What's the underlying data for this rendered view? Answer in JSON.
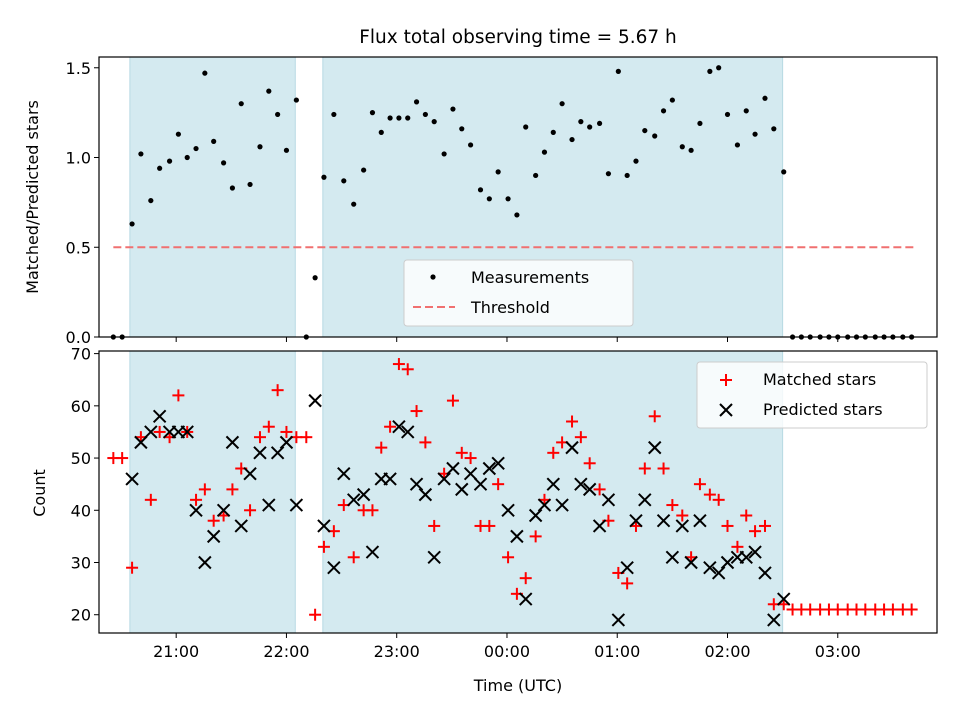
{
  "chart_data": {
    "title": "Flux total observing time = 5.67 h",
    "xlabel": "Time (UTC)",
    "xlim": [
      -0.7,
      6.9
    ],
    "x_ticks": [
      {
        "value": 0,
        "label": "21:00"
      },
      {
        "value": 1,
        "label": "22:00"
      },
      {
        "value": 2,
        "label": "23:00"
      },
      {
        "value": 3,
        "label": "00:00"
      },
      {
        "value": 4,
        "label": "01:00"
      },
      {
        "value": 5,
        "label": "02:00"
      },
      {
        "value": 6,
        "label": "03:00"
      }
    ],
    "shaded_intervals": [
      [
        -0.42,
        1.08
      ],
      [
        1.33,
        5.5
      ]
    ],
    "shade_color": "#d4eaf0",
    "top": {
      "type": "scatter",
      "ylabel": "Matched/Predicted stars",
      "ylim": [
        0,
        1.56
      ],
      "y_ticks": [
        {
          "value": 0,
          "label": "0.0"
        },
        {
          "value": 0.5,
          "label": "0.5"
        },
        {
          "value": 1.0,
          "label": "1.0"
        },
        {
          "value": 1.5,
          "label": "1.5"
        }
      ],
      "threshold": {
        "value": 0.5,
        "x_range": [
          -0.57,
          6.7
        ],
        "color": "#f07070"
      },
      "legend": [
        "Measurements",
        "Threshold"
      ],
      "measurements": [
        [
          -0.57,
          0.0
        ],
        [
          -0.49,
          0.0
        ],
        [
          -0.4,
          0.63
        ],
        [
          -0.32,
          1.02
        ],
        [
          -0.23,
          0.76
        ],
        [
          -0.15,
          0.94
        ],
        [
          -0.06,
          0.98
        ],
        [
          0.02,
          1.13
        ],
        [
          0.1,
          1.0
        ],
        [
          0.18,
          1.05
        ],
        [
          0.26,
          1.47
        ],
        [
          0.34,
          1.09
        ],
        [
          0.43,
          0.97
        ],
        [
          0.51,
          0.83
        ],
        [
          0.59,
          1.3
        ],
        [
          0.67,
          0.85
        ],
        [
          0.76,
          1.06
        ],
        [
          0.84,
          1.37
        ],
        [
          0.92,
          1.24
        ],
        [
          1.0,
          1.04
        ],
        [
          1.09,
          1.32
        ],
        [
          1.18,
          0.0
        ],
        [
          1.26,
          0.33
        ],
        [
          1.34,
          0.89
        ],
        [
          1.43,
          1.24
        ],
        [
          1.52,
          0.87
        ],
        [
          1.61,
          0.74
        ],
        [
          1.7,
          0.93
        ],
        [
          1.78,
          1.25
        ],
        [
          1.86,
          1.14
        ],
        [
          1.94,
          1.22
        ],
        [
          2.02,
          1.22
        ],
        [
          2.1,
          1.22
        ],
        [
          2.18,
          1.31
        ],
        [
          2.26,
          1.24
        ],
        [
          2.34,
          1.2
        ],
        [
          2.43,
          1.02
        ],
        [
          2.51,
          1.27
        ],
        [
          2.59,
          1.16
        ],
        [
          2.67,
          1.07
        ],
        [
          2.76,
          0.82
        ],
        [
          2.84,
          0.77
        ],
        [
          2.92,
          0.92
        ],
        [
          3.01,
          0.77
        ],
        [
          3.09,
          0.68
        ],
        [
          3.17,
          1.17
        ],
        [
          3.26,
          0.9
        ],
        [
          3.34,
          1.03
        ],
        [
          3.42,
          1.14
        ],
        [
          3.5,
          1.3
        ],
        [
          3.59,
          1.1
        ],
        [
          3.67,
          1.2
        ],
        [
          3.75,
          1.17
        ],
        [
          3.84,
          1.19
        ],
        [
          3.92,
          0.91
        ],
        [
          4.01,
          1.48
        ],
        [
          4.09,
          0.9
        ],
        [
          4.17,
          0.98
        ],
        [
          4.25,
          1.15
        ],
        [
          4.34,
          1.12
        ],
        [
          4.42,
          1.26
        ],
        [
          4.5,
          1.32
        ],
        [
          4.59,
          1.06
        ],
        [
          4.67,
          1.04
        ],
        [
          4.75,
          1.19
        ],
        [
          4.84,
          1.48
        ],
        [
          4.92,
          1.5
        ],
        [
          5.0,
          1.24
        ],
        [
          5.09,
          1.07
        ],
        [
          5.17,
          1.26
        ],
        [
          5.25,
          1.13
        ],
        [
          5.34,
          1.33
        ],
        [
          5.42,
          1.16
        ],
        [
          5.51,
          0.92
        ],
        [
          5.59,
          0.0
        ],
        [
          5.67,
          0.0
        ],
        [
          5.75,
          0.0
        ],
        [
          5.84,
          0.0
        ],
        [
          5.92,
          0.0
        ],
        [
          6.0,
          0.0
        ],
        [
          6.09,
          0.0
        ],
        [
          6.17,
          0.0
        ],
        [
          6.25,
          0.0
        ],
        [
          6.34,
          0.0
        ],
        [
          6.42,
          0.0
        ],
        [
          6.5,
          0.0
        ],
        [
          6.59,
          0.0
        ],
        [
          6.67,
          0.0
        ]
      ]
    },
    "bottom": {
      "type": "scatter",
      "ylabel": "Count",
      "ylim": [
        16.5,
        70.5
      ],
      "y_ticks": [
        {
          "value": 20,
          "label": "20"
        },
        {
          "value": 30,
          "label": "30"
        },
        {
          "value": 40,
          "label": "40"
        },
        {
          "value": 50,
          "label": "50"
        },
        {
          "value": 60,
          "label": "60"
        },
        {
          "value": 70,
          "label": "70"
        }
      ],
      "legend": [
        "Matched stars",
        "Predicted stars"
      ],
      "series": [
        {
          "name": "Matched stars",
          "color": "#ff0000",
          "points": [
            [
              -0.57,
              50
            ],
            [
              -0.49,
              50
            ],
            [
              -0.4,
              29
            ],
            [
              -0.32,
              54
            ],
            [
              -0.23,
              42
            ],
            [
              -0.15,
              55
            ],
            [
              -0.06,
              54
            ],
            [
              0.02,
              62
            ],
            [
              0.1,
              55
            ],
            [
              0.18,
              42
            ],
            [
              0.26,
              44
            ],
            [
              0.34,
              38
            ],
            [
              0.43,
              39
            ],
            [
              0.51,
              44
            ],
            [
              0.59,
              48
            ],
            [
              0.67,
              40
            ],
            [
              0.76,
              54
            ],
            [
              0.84,
              56
            ],
            [
              0.92,
              63
            ],
            [
              1.0,
              55
            ],
            [
              1.09,
              54
            ],
            [
              1.18,
              54
            ],
            [
              1.26,
              20
            ],
            [
              1.34,
              33
            ],
            [
              1.43,
              36
            ],
            [
              1.52,
              41
            ],
            [
              1.61,
              31
            ],
            [
              1.7,
              40
            ],
            [
              1.78,
              40
            ],
            [
              1.86,
              52
            ],
            [
              1.94,
              56
            ],
            [
              2.02,
              68
            ],
            [
              2.1,
              67
            ],
            [
              2.18,
              59
            ],
            [
              2.26,
              53
            ],
            [
              2.34,
              37
            ],
            [
              2.43,
              47
            ],
            [
              2.51,
              61
            ],
            [
              2.59,
              51
            ],
            [
              2.67,
              50
            ],
            [
              2.76,
              37
            ],
            [
              2.84,
              37
            ],
            [
              2.92,
              45
            ],
            [
              3.01,
              31
            ],
            [
              3.09,
              24
            ],
            [
              3.17,
              27
            ],
            [
              3.26,
              35
            ],
            [
              3.34,
              42
            ],
            [
              3.42,
              51
            ],
            [
              3.5,
              53
            ],
            [
              3.59,
              57
            ],
            [
              3.67,
              54
            ],
            [
              3.75,
              49
            ],
            [
              3.84,
              44
            ],
            [
              3.92,
              38
            ],
            [
              4.01,
              28
            ],
            [
              4.09,
              26
            ],
            [
              4.17,
              37
            ],
            [
              4.25,
              48
            ],
            [
              4.34,
              58
            ],
            [
              4.42,
              48
            ],
            [
              4.5,
              41
            ],
            [
              4.59,
              39
            ],
            [
              4.67,
              31
            ],
            [
              4.75,
              45
            ],
            [
              4.84,
              43
            ],
            [
              4.92,
              42
            ],
            [
              5.0,
              37
            ],
            [
              5.09,
              33
            ],
            [
              5.17,
              39
            ],
            [
              5.25,
              36
            ],
            [
              5.34,
              37
            ],
            [
              5.42,
              22
            ],
            [
              5.51,
              22
            ],
            [
              5.59,
              21
            ],
            [
              5.67,
              21
            ],
            [
              5.75,
              21
            ],
            [
              5.84,
              21
            ],
            [
              5.92,
              21
            ],
            [
              6.0,
              21
            ],
            [
              6.09,
              21
            ],
            [
              6.17,
              21
            ],
            [
              6.25,
              21
            ],
            [
              6.34,
              21
            ],
            [
              6.42,
              21
            ],
            [
              6.5,
              21
            ],
            [
              6.59,
              21
            ],
            [
              6.67,
              21
            ]
          ]
        },
        {
          "name": "Predicted stars",
          "color": "#000000",
          "points": [
            [
              -0.4,
              46
            ],
            [
              -0.32,
              53
            ],
            [
              -0.23,
              55
            ],
            [
              -0.15,
              58
            ],
            [
              -0.06,
              55
            ],
            [
              0.02,
              55
            ],
            [
              0.1,
              55
            ],
            [
              0.18,
              40
            ],
            [
              0.26,
              30
            ],
            [
              0.34,
              35
            ],
            [
              0.43,
              40
            ],
            [
              0.51,
              53
            ],
            [
              0.59,
              37
            ],
            [
              0.67,
              47
            ],
            [
              0.76,
              51
            ],
            [
              0.84,
              41
            ],
            [
              0.92,
              51
            ],
            [
              1.0,
              53
            ],
            [
              1.09,
              41
            ],
            [
              1.26,
              61
            ],
            [
              1.34,
              37
            ],
            [
              1.43,
              29
            ],
            [
              1.52,
              47
            ],
            [
              1.61,
              42
            ],
            [
              1.7,
              43
            ],
            [
              1.78,
              32
            ],
            [
              1.86,
              46
            ],
            [
              1.94,
              46
            ],
            [
              2.02,
              56
            ],
            [
              2.1,
              55
            ],
            [
              2.18,
              45
            ],
            [
              2.26,
              43
            ],
            [
              2.34,
              31
            ],
            [
              2.43,
              46
            ],
            [
              2.51,
              48
            ],
            [
              2.59,
              44
            ],
            [
              2.67,
              47
            ],
            [
              2.76,
              45
            ],
            [
              2.84,
              48
            ],
            [
              2.92,
              49
            ],
            [
              3.01,
              40
            ],
            [
              3.09,
              35
            ],
            [
              3.17,
              23
            ],
            [
              3.26,
              39
            ],
            [
              3.34,
              41
            ],
            [
              3.42,
              45
            ],
            [
              3.5,
              41
            ],
            [
              3.59,
              52
            ],
            [
              3.67,
              45
            ],
            [
              3.75,
              44
            ],
            [
              3.84,
              37
            ],
            [
              3.92,
              42
            ],
            [
              4.01,
              19
            ],
            [
              4.09,
              29
            ],
            [
              4.17,
              38
            ],
            [
              4.25,
              42
            ],
            [
              4.34,
              52
            ],
            [
              4.42,
              38
            ],
            [
              4.5,
              31
            ],
            [
              4.59,
              37
            ],
            [
              4.67,
              30
            ],
            [
              4.75,
              38
            ],
            [
              4.84,
              29
            ],
            [
              4.92,
              28
            ],
            [
              5.0,
              30
            ],
            [
              5.09,
              31
            ],
            [
              5.17,
              31
            ],
            [
              5.25,
              32
            ],
            [
              5.34,
              28
            ],
            [
              5.42,
              19
            ],
            [
              5.51,
              23
            ]
          ]
        }
      ]
    }
  }
}
